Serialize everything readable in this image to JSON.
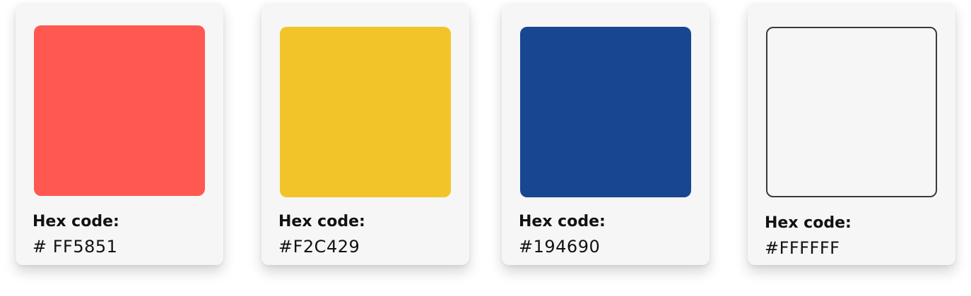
{
  "cards": [
    {
      "label": "Hex code:",
      "value": "# FF5851",
      "color": "#FF5851"
    },
    {
      "label": "Hex code:",
      "value": "#F2C429",
      "color": "#F2C429"
    },
    {
      "label": "Hex code:",
      "value": "#194690",
      "color": "#194690"
    },
    {
      "label": "Hex code:",
      "value": "#FFFFFF",
      "color": "#FFFFFF"
    }
  ]
}
